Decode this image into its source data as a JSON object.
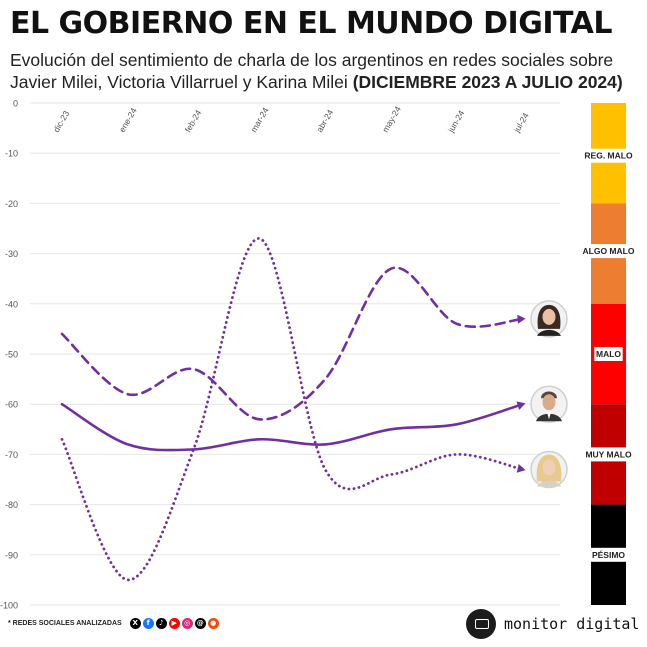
{
  "header": {
    "title": "EL GOBIERNO EN EL MUNDO DIGITAL",
    "subtitle": "Evolución del sentimiento de charla de los argentinos en redes sociales sobre Javier Milei, Victoria Villarruel y Karina Milei",
    "subtitle_bold": "(DICIEMBRE 2023 A JULIO 2024)"
  },
  "chart_data": {
    "type": "line",
    "title": "EL GOBIERNO EN EL MUNDO DIGITAL",
    "xlabel": "",
    "ylabel": "",
    "ylim": [
      -100,
      0
    ],
    "yticks": [
      "0",
      "-10",
      "-20",
      "-30",
      "-40",
      "-50",
      "-60",
      "-70",
      "-80",
      "-90",
      "-100"
    ],
    "yticks_values": [
      0,
      -10,
      -20,
      -30,
      -40,
      -50,
      -60,
      -70,
      -80,
      -90,
      -100
    ],
    "categories": [
      "dic-23",
      "ene-24",
      "feb-24",
      "mar-24",
      "abr-24",
      "may-24",
      "jun-24",
      "jul-24"
    ],
    "grid": true,
    "series": [
      {
        "values": [
          -46,
          -58,
          -53,
          -63,
          -55,
          -33,
          -44,
          -43
        ],
        "style": "dashed",
        "color": "#7030a0",
        "avatar": "woman-dark-hair-icon"
      },
      {
        "values": [
          -60,
          -68,
          -69,
          -67,
          -68,
          -65,
          -64,
          -60
        ],
        "style": "solid",
        "color": "#7030a0",
        "avatar": "man-suit-icon"
      },
      {
        "values": [
          -67,
          -95,
          -69,
          -27,
          -73,
          -74,
          -70,
          -73
        ],
        "style": "dotted",
        "color": "#7030a0",
        "avatar": "woman-blonde-icon"
      }
    ],
    "scale_bands": [
      {
        "label": "REG. MALO",
        "from": 0,
        "to": -20,
        "color": "#ffc000"
      },
      {
        "label": "ALGO MALO",
        "from": -20,
        "to": -40,
        "color": "#ed7d31"
      },
      {
        "label": "MALO",
        "from": -40,
        "to": -60,
        "color": "#ff0000"
      },
      {
        "label": "MUY MALO",
        "from": -60,
        "to": -80,
        "color": "#c00000"
      },
      {
        "label": "PÉSIMO",
        "from": -80,
        "to": -100,
        "color": "#000000"
      }
    ],
    "scale_label_positions": [
      -10.5,
      -29.5,
      -50,
      -70,
      -90
    ]
  },
  "footer": {
    "networks_label": "* REDES SOCIALES ANALIZADAS",
    "networks": [
      {
        "icon": "x-icon",
        "glyph": "X",
        "color": "#000000"
      },
      {
        "icon": "facebook-icon",
        "glyph": "f",
        "color": "#1877f2"
      },
      {
        "icon": "tiktok-icon",
        "glyph": "♪",
        "color": "#000000"
      },
      {
        "icon": "youtube-icon",
        "glyph": "▶",
        "color": "#ff0000"
      },
      {
        "icon": "instagram-icon",
        "glyph": "◎",
        "color": "#d62976"
      },
      {
        "icon": "threads-icon",
        "glyph": "@",
        "color": "#000000"
      },
      {
        "icon": "reddit-icon",
        "glyph": "●",
        "color": "#ff4500"
      }
    ],
    "brand": "monitor digital"
  }
}
